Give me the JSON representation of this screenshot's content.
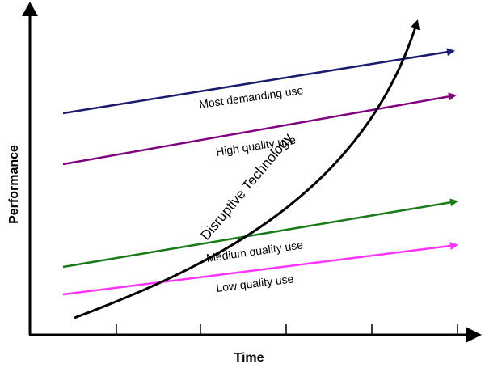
{
  "axes": {
    "x_title": "Time",
    "y_title": "Performance"
  },
  "trajectories": [
    {
      "label": "Most demanding use",
      "color": "#1a1a6e"
    },
    {
      "label": "High quality use",
      "color": "#800080"
    },
    {
      "label": "Medium quality use",
      "color": "#1a7a1a"
    },
    {
      "label": "Low quality use",
      "color": "#ff33ff"
    }
  ],
  "disruptive": {
    "label": "Disruptive Technology",
    "color": "#000000"
  }
}
